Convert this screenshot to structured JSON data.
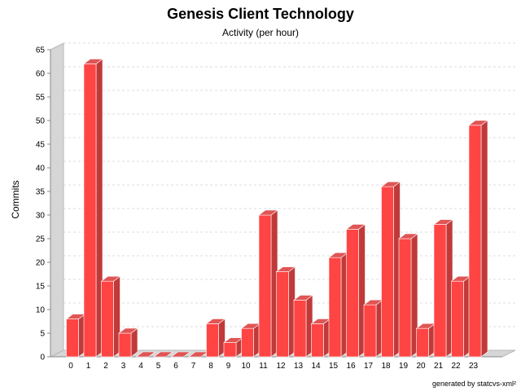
{
  "chart_data": {
    "type": "bar",
    "title": "Genesis Client Technology",
    "subtitle": "Activity (per hour)",
    "xlabel": "",
    "ylabel": "Commits",
    "categories": [
      "0",
      "1",
      "2",
      "3",
      "4",
      "5",
      "6",
      "7",
      "8",
      "9",
      "10",
      "11",
      "12",
      "13",
      "14",
      "15",
      "16",
      "17",
      "18",
      "19",
      "20",
      "21",
      "22",
      "23"
    ],
    "values": [
      8,
      62,
      16,
      5,
      0,
      0,
      0,
      0,
      7,
      3,
      6,
      30,
      18,
      12,
      7,
      21,
      27,
      11,
      36,
      25,
      6,
      28,
      16,
      49
    ],
    "ylim": [
      0,
      65
    ],
    "yticks": [
      0,
      5,
      10,
      15,
      20,
      25,
      30,
      35,
      40,
      45,
      50,
      55,
      60,
      65
    ],
    "grid": true,
    "bar_color": "#ff4444",
    "bar_side_color": "#c03a3a",
    "bar_top_color": "#e05555"
  },
  "footer": "generated by statcvs-xml²"
}
